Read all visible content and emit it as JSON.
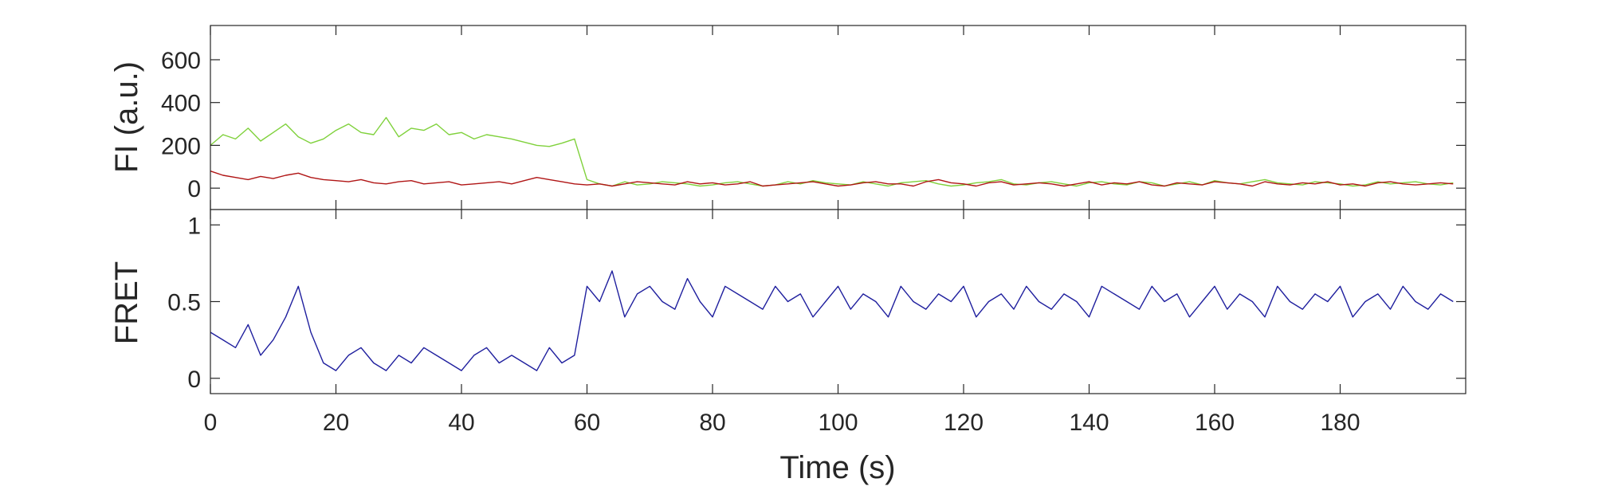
{
  "figure": {
    "x_axis": {
      "label": "Time (s)",
      "range": [
        0,
        200
      ],
      "ticks": [
        0,
        20,
        40,
        60,
        80,
        100,
        120,
        140,
        160,
        180
      ]
    }
  },
  "chart_data": [
    {
      "type": "line",
      "panel": "top",
      "ylabel": "FI (a.u.)",
      "ylim": [
        -100,
        760
      ],
      "yticks": [
        0,
        200,
        400,
        600
      ],
      "grid": false,
      "series": [
        {
          "color": "#7fd13b",
          "sample_interval_s": 2,
          "x_range": [
            0,
            200
          ],
          "values": [
            200,
            250,
            230,
            280,
            220,
            260,
            300,
            240,
            210,
            230,
            270,
            300,
            260,
            250,
            330,
            240,
            280,
            270,
            300,
            250,
            260,
            230,
            250,
            240,
            230,
            215,
            200,
            195,
            210,
            230,
            40,
            20,
            10,
            30,
            15,
            20,
            30,
            25,
            20,
            10,
            15,
            25,
            30,
            20,
            10,
            15,
            30,
            20,
            35,
            25,
            20,
            15,
            30,
            20,
            10,
            25,
            30,
            35,
            20,
            10,
            15,
            25,
            30,
            40,
            20,
            15,
            25,
            30,
            20,
            10,
            25,
            30,
            20,
            15,
            30,
            25,
            10,
            20,
            30,
            15,
            35,
            25,
            20,
            30,
            40,
            25,
            20,
            15,
            30,
            25,
            20,
            10,
            15,
            30,
            20,
            25,
            30,
            20,
            15,
            25
          ]
        },
        {
          "color": "#b01515",
          "sample_interval_s": 2,
          "x_range": [
            0,
            200
          ],
          "values": [
            80,
            60,
            50,
            40,
            55,
            45,
            60,
            70,
            50,
            40,
            35,
            30,
            40,
            25,
            20,
            30,
            35,
            20,
            25,
            30,
            15,
            20,
            25,
            30,
            20,
            35,
            50,
            40,
            30,
            20,
            15,
            20,
            10,
            20,
            30,
            25,
            20,
            15,
            30,
            20,
            25,
            15,
            20,
            30,
            10,
            15,
            20,
            25,
            30,
            20,
            10,
            15,
            25,
            30,
            20,
            20,
            10,
            30,
            40,
            25,
            20,
            10,
            25,
            30,
            15,
            20,
            25,
            20,
            10,
            20,
            30,
            15,
            25,
            20,
            30,
            15,
            10,
            25,
            20,
            15,
            30,
            25,
            20,
            10,
            30,
            20,
            15,
            25,
            20,
            30,
            15,
            20,
            10,
            25,
            30,
            20,
            15,
            20,
            25,
            20
          ]
        }
      ]
    },
    {
      "type": "line",
      "panel": "bottom",
      "ylabel": "FRET",
      "ylim": [
        -0.1,
        1.1
      ],
      "yticks": [
        0,
        0.5,
        1
      ],
      "ytick_labels": [
        "0",
        "0.5",
        "1"
      ],
      "grid": false,
      "series": [
        {
          "color": "#1f1f9e",
          "sample_interval_s": 2,
          "x_range": [
            0,
            200
          ],
          "values": [
            0.3,
            0.25,
            0.2,
            0.35,
            0.15,
            0.25,
            0.4,
            0.6,
            0.3,
            0.1,
            0.05,
            0.15,
            0.2,
            0.1,
            0.05,
            0.15,
            0.1,
            0.2,
            0.15,
            0.1,
            0.05,
            0.15,
            0.2,
            0.1,
            0.15,
            0.1,
            0.05,
            0.2,
            0.1,
            0.15,
            0.6,
            0.5,
            0.7,
            0.4,
            0.55,
            0.6,
            0.5,
            0.45,
            0.65,
            0.5,
            0.4,
            0.6,
            0.55,
            0.5,
            0.45,
            0.6,
            0.5,
            0.55,
            0.4,
            0.5,
            0.6,
            0.45,
            0.55,
            0.5,
            0.4,
            0.6,
            0.5,
            0.45,
            0.55,
            0.5,
            0.6,
            0.4,
            0.5,
            0.55,
            0.45,
            0.6,
            0.5,
            0.45,
            0.55,
            0.5,
            0.4,
            0.6,
            0.55,
            0.5,
            0.45,
            0.6,
            0.5,
            0.55,
            0.4,
            0.5,
            0.6,
            0.45,
            0.55,
            0.5,
            0.4,
            0.6,
            0.5,
            0.45,
            0.55,
            0.5,
            0.6,
            0.4,
            0.5,
            0.55,
            0.45,
            0.6,
            0.5,
            0.45,
            0.55,
            0.5
          ]
        }
      ]
    }
  ]
}
